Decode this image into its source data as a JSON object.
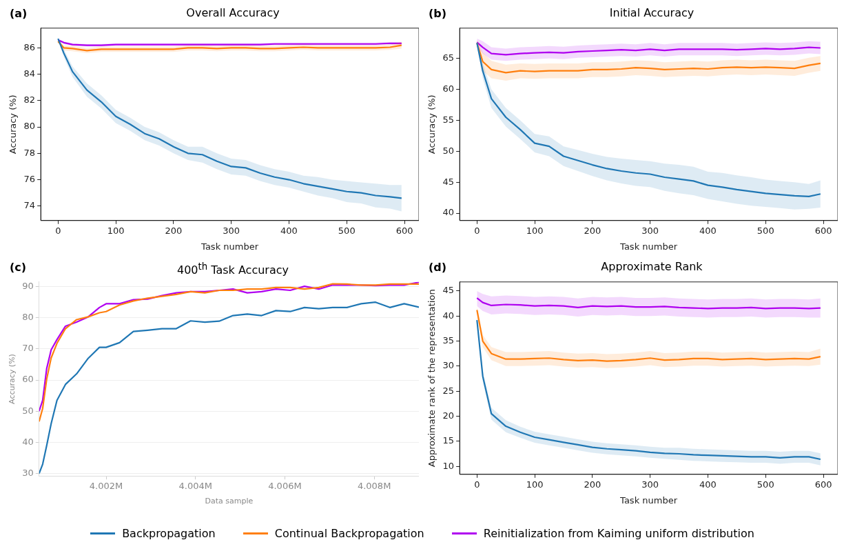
{
  "chart_data": [
    {
      "type": "line",
      "title": "Overall Accuracy",
      "xlabel": "Task number",
      "ylabel": "Accuracy (%)",
      "annotations": [
        "(a)"
      ],
      "grid": false,
      "xlim": [
        -30,
        625
      ],
      "xticks": [
        0,
        100,
        200,
        300,
        400,
        500,
        600
      ],
      "ylim": [
        72.9,
        87.5
      ],
      "yticks": [
        74,
        76,
        78,
        80,
        82,
        84,
        86
      ],
      "x": [
        0,
        10,
        25,
        50,
        75,
        100,
        125,
        150,
        175,
        200,
        225,
        250,
        275,
        300,
        325,
        350,
        375,
        400,
        425,
        450,
        475,
        500,
        525,
        550,
        575,
        595
      ],
      "series": [
        {
          "color": "#1f77b4",
          "values": [
            86.7,
            85.6,
            84.2,
            82.8,
            81.9,
            80.8,
            80.2,
            79.5,
            79.1,
            78.5,
            78.0,
            77.9,
            77.4,
            77.0,
            76.9,
            76.5,
            76.2,
            76.0,
            75.7,
            75.5,
            75.3,
            75.1,
            75.0,
            74.8,
            74.7,
            74.6
          ],
          "lower": [
            86.6,
            85.3,
            83.8,
            82.3,
            81.4,
            80.3,
            79.7,
            79.0,
            78.6,
            78.0,
            77.5,
            77.3,
            76.8,
            76.4,
            76.3,
            75.9,
            75.6,
            75.4,
            75.1,
            74.8,
            74.6,
            74.3,
            74.2,
            73.9,
            73.8,
            73.6
          ],
          "upper": [
            86.8,
            85.9,
            84.6,
            83.3,
            82.4,
            81.3,
            80.7,
            80.0,
            79.6,
            79.0,
            78.5,
            78.5,
            78.0,
            77.6,
            77.5,
            77.1,
            76.8,
            76.6,
            76.3,
            76.2,
            76.0,
            75.9,
            75.8,
            75.7,
            75.6,
            75.6
          ]
        },
        {
          "color": "#ff7f0e",
          "values": [
            86.5,
            86.0,
            85.95,
            85.8,
            85.9,
            85.9,
            85.9,
            85.9,
            85.9,
            85.9,
            86.0,
            86.0,
            85.95,
            86.0,
            86.0,
            85.95,
            85.95,
            86.0,
            86.05,
            86.0,
            86.0,
            86.0,
            86.0,
            86.0,
            86.05,
            86.2
          ],
          "lower": [
            86.4,
            85.8,
            85.75,
            85.6,
            85.7,
            85.7,
            85.7,
            85.7,
            85.7,
            85.7,
            85.8,
            85.8,
            85.75,
            85.8,
            85.8,
            85.75,
            85.75,
            85.8,
            85.85,
            85.8,
            85.8,
            85.8,
            85.8,
            85.8,
            85.85,
            85.95
          ],
          "upper": [
            86.6,
            86.2,
            86.15,
            86.0,
            86.1,
            86.1,
            86.1,
            86.1,
            86.1,
            86.1,
            86.2,
            86.2,
            86.15,
            86.2,
            86.2,
            86.15,
            86.15,
            86.2,
            86.25,
            86.2,
            86.2,
            86.2,
            86.2,
            86.2,
            86.25,
            86.45
          ]
        },
        {
          "color": "#b000f0",
          "values": [
            86.6,
            86.4,
            86.25,
            86.2,
            86.2,
            86.25,
            86.25,
            86.25,
            86.25,
            86.25,
            86.25,
            86.25,
            86.25,
            86.25,
            86.25,
            86.25,
            86.3,
            86.3,
            86.3,
            86.3,
            86.3,
            86.3,
            86.3,
            86.3,
            86.35,
            86.35
          ],
          "lower": [
            86.5,
            86.3,
            86.15,
            86.1,
            86.1,
            86.15,
            86.15,
            86.15,
            86.15,
            86.15,
            86.15,
            86.15,
            86.15,
            86.15,
            86.15,
            86.15,
            86.2,
            86.2,
            86.2,
            86.2,
            86.2,
            86.2,
            86.2,
            86.2,
            86.25,
            86.25
          ],
          "upper": [
            86.7,
            86.5,
            86.35,
            86.3,
            86.3,
            86.35,
            86.35,
            86.35,
            86.35,
            86.35,
            86.35,
            86.35,
            86.35,
            86.35,
            86.35,
            86.35,
            86.4,
            86.4,
            86.4,
            86.4,
            86.4,
            86.4,
            86.4,
            86.4,
            86.45,
            86.45
          ]
        }
      ]
    },
    {
      "type": "line",
      "title": "Initial Accuracy",
      "xlabel": "Task number",
      "ylabel": "Accuracy (%)",
      "annotations": [
        "(b)"
      ],
      "grid": false,
      "xlim": [
        -30,
        625
      ],
      "xticks": [
        0,
        100,
        200,
        300,
        400,
        500,
        600
      ],
      "ylim": [
        38.8,
        69.9
      ],
      "yticks": [
        40,
        45,
        50,
        55,
        60,
        65
      ],
      "x": [
        0,
        10,
        25,
        50,
        75,
        100,
        125,
        150,
        175,
        200,
        225,
        250,
        275,
        300,
        325,
        350,
        375,
        400,
        425,
        450,
        475,
        500,
        525,
        550,
        575,
        595
      ],
      "series": [
        {
          "color": "#1f77b4",
          "values": [
            67.5,
            63.0,
            58.5,
            55.5,
            53.5,
            51.3,
            50.8,
            49.2,
            48.5,
            47.8,
            47.2,
            46.8,
            46.5,
            46.3,
            45.8,
            45.5,
            45.2,
            44.5,
            44.2,
            43.8,
            43.5,
            43.2,
            43.0,
            42.8,
            42.7,
            43.1
          ],
          "lower": [
            67.0,
            61.8,
            57.0,
            54.0,
            52.0,
            49.8,
            49.2,
            47.6,
            46.8,
            46.0,
            45.3,
            44.8,
            44.4,
            44.2,
            43.6,
            43.2,
            42.9,
            42.3,
            41.9,
            41.5,
            41.2,
            41.0,
            40.8,
            40.6,
            40.7,
            40.9
          ],
          "upper": [
            68.0,
            64.2,
            60.0,
            57.0,
            55.0,
            52.8,
            52.4,
            50.8,
            50.2,
            49.6,
            49.1,
            48.8,
            48.6,
            48.4,
            48.0,
            47.8,
            47.5,
            46.7,
            46.5,
            46.1,
            45.8,
            45.4,
            45.2,
            45.0,
            44.7,
            45.3
          ]
        },
        {
          "color": "#ff7f0e",
          "values": [
            67.5,
            64.5,
            63.2,
            62.7,
            63.0,
            62.9,
            63.0,
            63.0,
            63.0,
            63.2,
            63.2,
            63.3,
            63.5,
            63.4,
            63.2,
            63.3,
            63.4,
            63.3,
            63.5,
            63.6,
            63.5,
            63.6,
            63.5,
            63.4,
            63.9,
            64.2
          ],
          "lower": [
            67.0,
            63.0,
            61.8,
            61.4,
            61.8,
            61.7,
            61.8,
            61.8,
            61.8,
            62.0,
            62.0,
            62.1,
            62.3,
            62.2,
            62.0,
            62.1,
            62.2,
            62.1,
            62.3,
            62.4,
            62.3,
            62.4,
            62.3,
            62.2,
            62.7,
            63.0
          ],
          "upper": [
            68.0,
            66.0,
            64.6,
            64.0,
            64.2,
            64.1,
            64.2,
            64.2,
            64.2,
            64.4,
            64.4,
            64.5,
            64.7,
            64.6,
            64.4,
            64.5,
            64.6,
            64.5,
            64.7,
            64.8,
            64.7,
            64.8,
            64.7,
            64.6,
            65.1,
            65.4
          ]
        },
        {
          "color": "#b000f0",
          "values": [
            67.6,
            66.8,
            65.8,
            65.6,
            65.8,
            65.9,
            66.0,
            65.9,
            66.1,
            66.2,
            66.3,
            66.4,
            66.3,
            66.5,
            66.3,
            66.5,
            66.5,
            66.5,
            66.5,
            66.4,
            66.5,
            66.6,
            66.5,
            66.6,
            66.8,
            66.7
          ],
          "lower": [
            67.0,
            65.8,
            64.8,
            64.6,
            64.8,
            64.9,
            65.0,
            64.9,
            65.1,
            65.2,
            65.3,
            65.4,
            65.3,
            65.5,
            65.3,
            65.5,
            65.5,
            65.5,
            65.5,
            65.4,
            65.5,
            65.6,
            65.5,
            65.6,
            65.8,
            65.7
          ],
          "upper": [
            68.2,
            67.8,
            66.8,
            66.6,
            66.8,
            66.9,
            67.0,
            66.9,
            67.1,
            67.2,
            67.3,
            67.4,
            67.3,
            67.5,
            67.3,
            67.5,
            67.5,
            67.5,
            67.5,
            67.4,
            67.5,
            67.6,
            67.5,
            67.6,
            67.8,
            67.7
          ]
        }
      ]
    },
    {
      "type": "line",
      "title": "400$^{th}$ Task Accuracy",
      "xlabel": "Data sample",
      "ylabel": "Accuracy (%)",
      "annotations": [
        "(c)"
      ],
      "grid": "y",
      "xlim": [
        4000500,
        4009000
      ],
      "xticks": [
        {
          "value": 4002000,
          "label": "4.002M"
        },
        {
          "value": 4004000,
          "label": "4.004M"
        },
        {
          "value": 4006000,
          "label": "4.006M"
        },
        {
          "value": 4008000,
          "label": "4.008M"
        }
      ],
      "ylim": [
        29.2,
        91.5
      ],
      "yticks": [
        30,
        40,
        50,
        60,
        70,
        80,
        90
      ],
      "x": [
        4000500,
        4000580,
        4000670,
        4000770,
        4000900,
        4001090,
        4001340,
        4001600,
        4001850,
        4002000,
        4002300,
        4002610,
        4002930,
        4003250,
        4003570,
        4003890,
        4004210,
        4004530,
        4004840,
        4005160,
        4005480,
        4005800,
        4006120,
        4006440,
        4006760,
        4007070,
        4007390,
        4007710,
        4008030,
        4008350,
        4008670,
        4009000
      ],
      "series": [
        {
          "color": "#1f77b4",
          "values": [
            30,
            33,
            39,
            46,
            53.5,
            58.6,
            62,
            67,
            70.5,
            70.5,
            72,
            75.6,
            76,
            76.5,
            76.5,
            79,
            78.6,
            78.9,
            80.7,
            81.2,
            80.7,
            82.3,
            82,
            83.3,
            82.9,
            83.3,
            83.3,
            84.5,
            85,
            83.3,
            84.5,
            83.4
          ]
        },
        {
          "color": "#ff7f0e",
          "values": [
            46.7,
            50.9,
            60.3,
            67.1,
            71.8,
            76.5,
            79.4,
            80.3,
            81.6,
            82,
            84.1,
            85.4,
            86.3,
            86.9,
            87.5,
            88.4,
            88,
            88.8,
            88.8,
            89.2,
            89.2,
            89.7,
            89.7,
            89.2,
            89.7,
            90.9,
            90.8,
            90.5,
            90.5,
            90.8,
            90.8,
            90.8
          ]
        },
        {
          "color": "#b000f0",
          "values": [
            50,
            53.5,
            63.7,
            69.7,
            73,
            77.3,
            78.6,
            80.3,
            83.3,
            84.5,
            84.5,
            85.8,
            86,
            87.1,
            88,
            88.4,
            88.4,
            88.8,
            89.2,
            88,
            88.4,
            89.2,
            88.8,
            90.1,
            89.2,
            90.5,
            90.5,
            90.5,
            90.3,
            90.5,
            90.5,
            91.4
          ]
        }
      ]
    },
    {
      "type": "line",
      "title": "Approximate Rank",
      "xlabel": "Task number",
      "ylabel": "Approximate rank of the representation",
      "annotations": [
        "(d)"
      ],
      "legend": "bottom",
      "grid": false,
      "xlim": [
        -30,
        625
      ],
      "xticks": [
        0,
        100,
        200,
        300,
        400,
        500,
        600
      ],
      "ylim": [
        8.4,
        46.8
      ],
      "yticks": [
        10,
        15,
        20,
        25,
        30,
        35,
        40,
        45
      ],
      "x": [
        0,
        10,
        25,
        50,
        75,
        100,
        125,
        150,
        175,
        200,
        225,
        250,
        275,
        300,
        325,
        350,
        375,
        400,
        425,
        450,
        475,
        500,
        525,
        550,
        575,
        595
      ],
      "series": [
        {
          "name": "Backpropagation",
          "color": "#1f77b4",
          "values": [
            39.2,
            28.0,
            20.5,
            18.0,
            16.8,
            15.8,
            15.3,
            14.8,
            14.3,
            13.8,
            13.5,
            13.3,
            13.1,
            12.8,
            12.6,
            12.5,
            12.3,
            12.2,
            12.1,
            12.0,
            11.9,
            11.9,
            11.7,
            11.9,
            11.9,
            11.4
          ],
          "lower": [
            38.5,
            27.0,
            19.3,
            16.8,
            15.7,
            14.7,
            14.2,
            13.7,
            13.2,
            12.7,
            12.4,
            12.2,
            12.0,
            11.7,
            11.5,
            11.3,
            11.1,
            11.0,
            10.9,
            10.8,
            10.7,
            10.7,
            10.5,
            10.7,
            10.7,
            10.2
          ],
          "upper": [
            39.9,
            29.0,
            21.7,
            19.2,
            17.9,
            16.9,
            16.4,
            15.9,
            15.4,
            14.9,
            14.6,
            14.4,
            14.2,
            13.9,
            13.7,
            13.7,
            13.5,
            13.4,
            13.3,
            13.2,
            13.1,
            13.1,
            12.9,
            13.1,
            13.1,
            12.6
          ]
        },
        {
          "name": "Continual Backpropagation",
          "color": "#ff7f0e",
          "values": [
            41.2,
            35.0,
            32.5,
            31.4,
            31.4,
            31.5,
            31.6,
            31.3,
            31.1,
            31.2,
            31.0,
            31.1,
            31.3,
            31.6,
            31.2,
            31.3,
            31.5,
            31.5,
            31.3,
            31.4,
            31.5,
            31.3,
            31.4,
            31.5,
            31.4,
            31.9
          ],
          "lower": [
            40.5,
            33.8,
            31.2,
            30.0,
            30.0,
            30.1,
            30.2,
            29.9,
            29.7,
            29.8,
            29.6,
            29.7,
            29.9,
            30.2,
            29.8,
            29.9,
            30.1,
            30.1,
            29.9,
            30.0,
            30.1,
            29.9,
            30.0,
            30.1,
            30.0,
            30.3
          ],
          "upper": [
            41.9,
            36.2,
            33.8,
            32.8,
            32.8,
            32.9,
            33.0,
            32.7,
            32.5,
            32.6,
            32.4,
            32.5,
            32.7,
            33.0,
            32.6,
            32.7,
            32.9,
            32.9,
            32.7,
            32.8,
            32.9,
            32.7,
            32.8,
            32.9,
            32.8,
            33.5
          ]
        },
        {
          "name": "Reinitialization from Kaiming uniform distribution",
          "color": "#b000f0",
          "values": [
            43.6,
            42.7,
            42.1,
            42.3,
            42.2,
            42.0,
            42.1,
            42.0,
            41.7,
            42.0,
            41.9,
            42.0,
            41.8,
            41.8,
            41.9,
            41.7,
            41.6,
            41.5,
            41.6,
            41.6,
            41.7,
            41.5,
            41.6,
            41.6,
            41.5,
            41.6
          ],
          "lower": [
            42.0,
            41.0,
            40.3,
            40.5,
            40.4,
            40.2,
            40.3,
            40.2,
            39.9,
            40.2,
            40.1,
            40.2,
            40.0,
            40.0,
            40.1,
            39.9,
            39.8,
            39.7,
            39.8,
            39.8,
            39.9,
            39.7,
            39.8,
            39.8,
            39.7,
            39.7
          ],
          "upper": [
            45.0,
            44.4,
            43.9,
            44.1,
            44.0,
            43.8,
            43.9,
            43.8,
            43.5,
            43.8,
            43.7,
            43.8,
            43.6,
            43.6,
            43.7,
            43.5,
            43.4,
            43.3,
            43.4,
            43.4,
            43.5,
            43.3,
            43.4,
            43.4,
            43.3,
            43.5
          ]
        }
      ]
    }
  ]
}
